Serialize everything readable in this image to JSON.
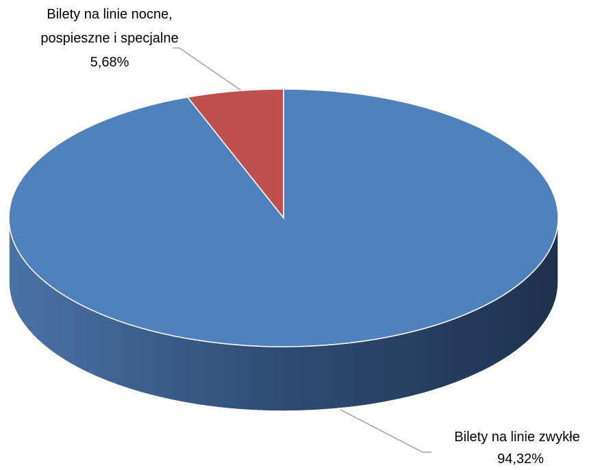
{
  "chart_data": {
    "type": "pie",
    "categories": [
      "Bilety na linie zwykłe",
      "Bilety na linie nocne, pospieszne i specjalne"
    ],
    "values": [
      94.32,
      5.68
    ],
    "value_labels": [
      "94,32%",
      "5,68%"
    ],
    "colors": [
      "#4f81bd",
      "#c0504d"
    ]
  }
}
